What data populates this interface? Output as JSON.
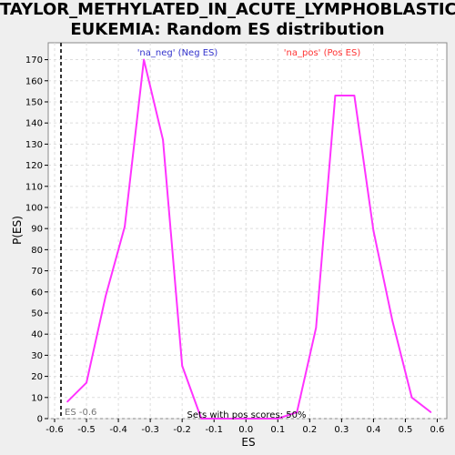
{
  "chart_data": {
    "type": "line",
    "title_line1": "TAYLOR_METHYLATED_IN_ACUTE_LYMPHOBLASTIC_L",
    "title_line2": "EUKEMIA: Random ES distribution",
    "xlabel": "ES",
    "ylabel": "P(ES)",
    "xlim": [
      -0.62,
      0.63
    ],
    "ylim": [
      0,
      178
    ],
    "x_ticks": [
      -0.6,
      -0.5,
      -0.4,
      -0.3,
      -0.2,
      -0.1,
      0.0,
      0.1,
      0.2,
      0.3,
      0.4,
      0.5,
      0.6
    ],
    "x_tick_labels": [
      "-0.6",
      "-0.5",
      "-0.4",
      "-0.3",
      "-0.2",
      "-0.1",
      "0.0",
      "0.1",
      "0.2",
      "0.3",
      "0.4",
      "0.5",
      "0.6"
    ],
    "y_ticks": [
      0,
      10,
      20,
      30,
      40,
      50,
      60,
      70,
      80,
      90,
      100,
      110,
      120,
      130,
      140,
      150,
      160,
      170
    ],
    "grid": true,
    "line_color": "#ff33ff",
    "series": [
      {
        "x": [
          -0.56,
          -0.5,
          -0.44,
          -0.38,
          -0.32,
          -0.26,
          -0.2,
          -0.14,
          -0.08,
          -0.02,
          0.04,
          0.1,
          0.16,
          0.22,
          0.28,
          0.34,
          0.4,
          0.46,
          0.52,
          0.58
        ],
        "values": [
          8,
          17,
          58,
          91,
          170,
          132,
          25,
          0,
          0,
          0,
          0,
          0,
          3,
          43,
          153,
          153,
          89,
          46,
          10,
          3
        ]
      }
    ],
    "es_line": {
      "x": -0.58,
      "label": "ES -0.6"
    },
    "annotations": {
      "neg_label": "'na_neg' (Neg ES)",
      "neg_color": "#3333cc",
      "pos_label": "'na_pos' (Pos ES)",
      "pos_color": "#ff3333",
      "pos_scores_text": "Sets with pos scores: 50%"
    }
  }
}
